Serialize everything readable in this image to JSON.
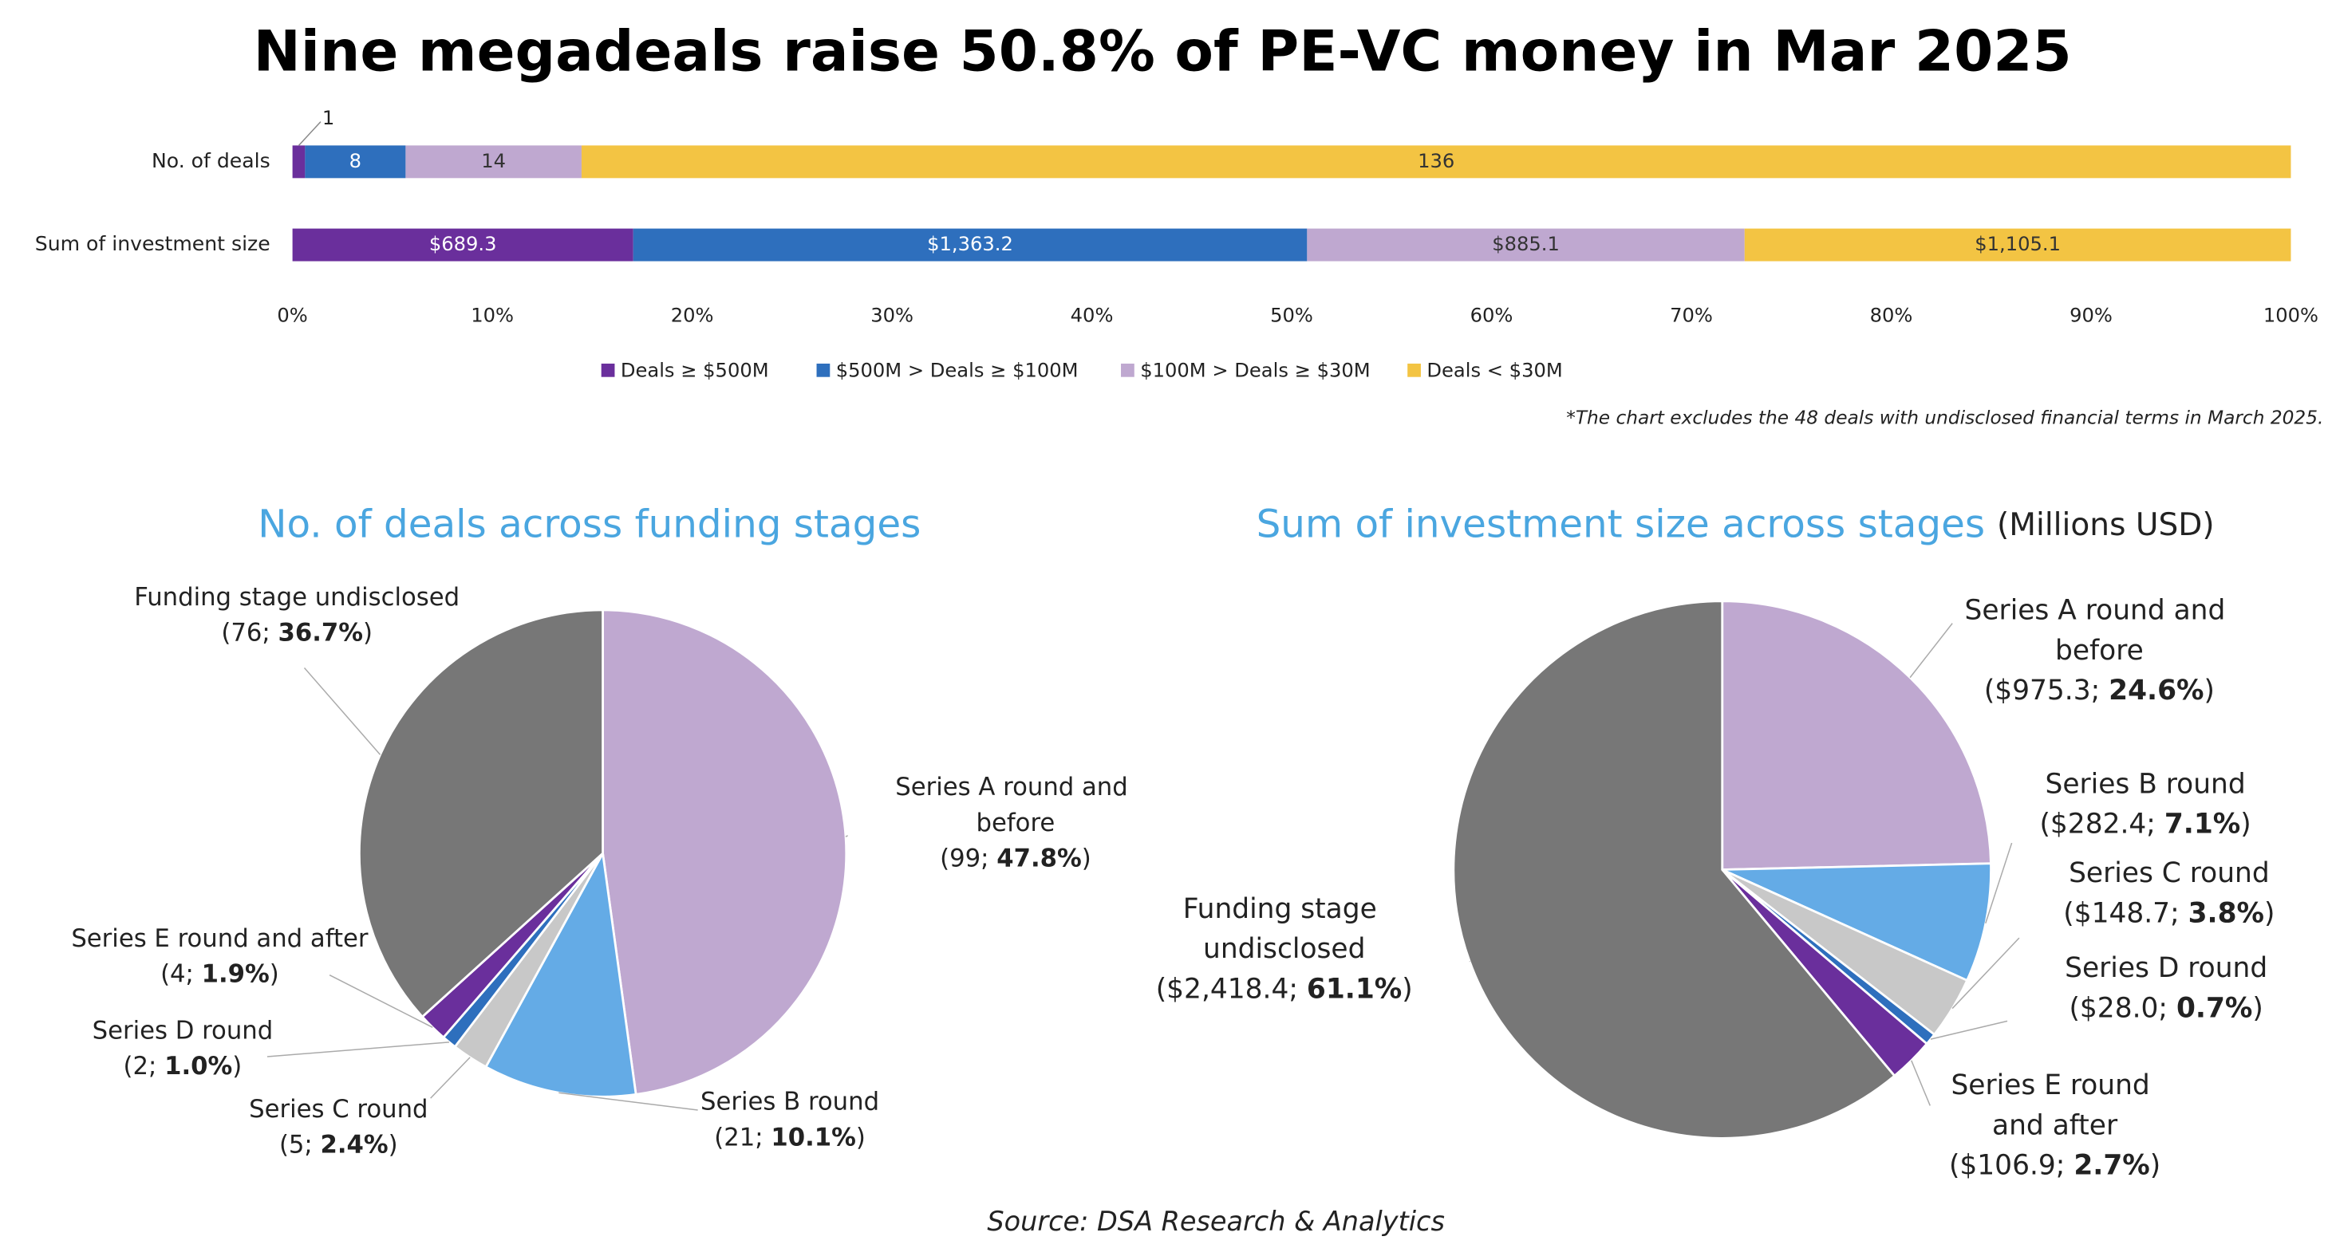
{
  "title": "Nine megadeals raise 50.8% of PE-VC money in Mar 2025",
  "source": "Source: DSA Research & Analytics",
  "chart_data": [
    {
      "type": "bar",
      "orientation": "horizontal",
      "stacking": "percent",
      "categories": [
        "No. of deals",
        "Sum of investment size"
      ],
      "series": [
        {
          "name": "Deals ≥ $500M",
          "color": "#6a2f9c",
          "values": [
            1,
            689.3
          ],
          "value_labels": [
            "1",
            "$689.3"
          ]
        },
        {
          "name": "$500M > Deals ≥ $100M",
          "color": "#2e6fbd",
          "values": [
            8,
            1363.2
          ],
          "value_labels": [
            "8",
            "$1,363.2"
          ]
        },
        {
          "name": "$100M > Deals ≥ $30M",
          "color": "#bfa8d0",
          "values": [
            14,
            885.1
          ],
          "value_labels": [
            "14",
            "$885.1"
          ]
        },
        {
          "name": "Deals < $30M",
          "color": "#f3c443",
          "values": [
            136,
            1105.1
          ],
          "value_labels": [
            "136",
            "$1,105.1"
          ]
        }
      ],
      "xlim": [
        0,
        100
      ],
      "xticks": [
        {
          "value": 0,
          "label": "0%"
        },
        {
          "value": 10,
          "label": "10%"
        },
        {
          "value": 20,
          "label": "20%"
        },
        {
          "value": 30,
          "label": "30%"
        },
        {
          "value": 40,
          "label": "40%"
        },
        {
          "value": 50,
          "label": "50%"
        },
        {
          "value": 60,
          "label": "60%"
        },
        {
          "value": 70,
          "label": "70%"
        },
        {
          "value": 80,
          "label": "80%"
        },
        {
          "value": 90,
          "label": "90%"
        },
        {
          "value": 100,
          "label": "100%"
        }
      ],
      "grid": false,
      "legend": "bottom",
      "note": "*The chart excludes the 48 deals with undisclosed financial terms in March 2025."
    },
    {
      "type": "pie",
      "title": "No. of deals across funding stages",
      "categories": [
        "Series A round and before",
        "Series B round",
        "Series C round",
        "Series D round",
        "Series E round and after",
        "Funding stage undisclosed"
      ],
      "values": [
        99,
        21,
        5,
        2,
        4,
        76
      ],
      "value_labels": [
        "(99; 47.8%)",
        "(21; 10.1%)",
        "(5; 2.4%)",
        "(2; 1.0%)",
        "(4; 1.9%)",
        "(76; 36.7%)"
      ],
      "colors": [
        "#bfa8d0",
        "#64abe6",
        "#c8c8c8",
        "#2e6fbd",
        "#6a2f9c",
        "#777777"
      ]
    },
    {
      "type": "pie",
      "title": "Sum of investment size across stages",
      "subtitle": "(Millions USD)",
      "categories": [
        "Series A round and before",
        "Series B round",
        "Series C round",
        "Series D round",
        "Series E round and after",
        "Funding stage undisclosed"
      ],
      "values": [
        975.3,
        282.4,
        148.7,
        28.0,
        106.9,
        2418.4
      ],
      "value_labels": [
        "($975.3; 24.6%)",
        "($282.4; 7.1%)",
        "($148.7; 3.8%)",
        "($28.0; 0.7%)",
        "($106.9; 2.7%)",
        "($2,418.4; 61.1%)"
      ],
      "colors": [
        "#bfa8d0",
        "#64abe6",
        "#c8c8c8",
        "#2e6fbd",
        "#6a2f9c",
        "#777777"
      ]
    }
  ]
}
